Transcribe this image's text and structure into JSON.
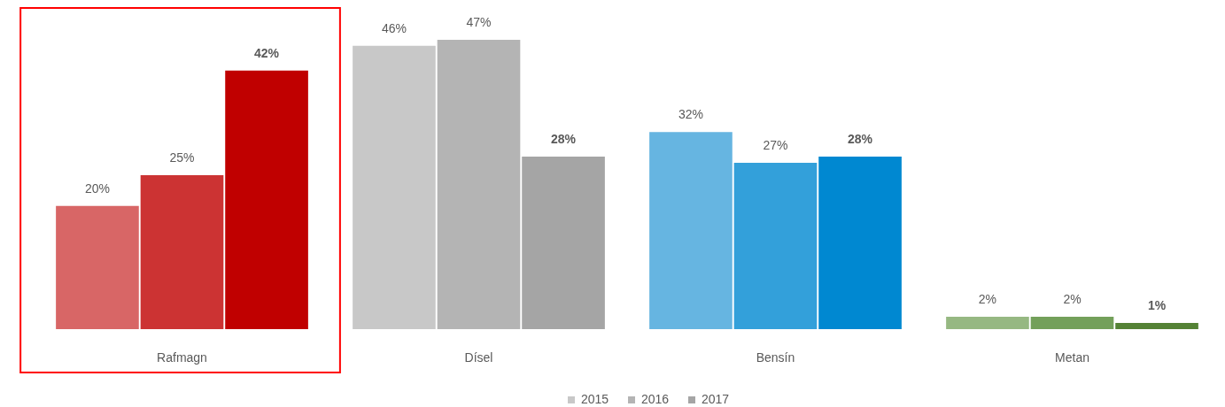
{
  "chart_data": {
    "type": "bar",
    "categories": [
      "Rafmagn",
      "Dísel",
      "Bensín",
      "Metan"
    ],
    "series": [
      {
        "name": "2015",
        "color": "#c8c8c8",
        "colors": [
          "#d86666",
          "#c8c8c8",
          "#66b5e1",
          "#96b882"
        ],
        "values": [
          20,
          46,
          32,
          2
        ],
        "value_labels": [
          "20%",
          "46%",
          "32%",
          "2%"
        ]
      },
      {
        "name": "2016",
        "color": "#b4b4b4",
        "colors": [
          "#cc3333",
          "#b4b4b4",
          "#33a0da",
          "#73a05a"
        ],
        "values": [
          25,
          47,
          27,
          2
        ],
        "value_labels": [
          "25%",
          "47%",
          "27%",
          "2%"
        ]
      },
      {
        "name": "2017",
        "color": "#a5a5a5",
        "colors": [
          "#c00000",
          "#a5a5a5",
          "#0088d1",
          "#548235"
        ],
        "values": [
          42,
          28,
          28,
          1
        ],
        "value_labels": [
          "42%",
          "28%",
          "28%",
          "1%"
        ]
      }
    ],
    "legend": "bottom"
  }
}
